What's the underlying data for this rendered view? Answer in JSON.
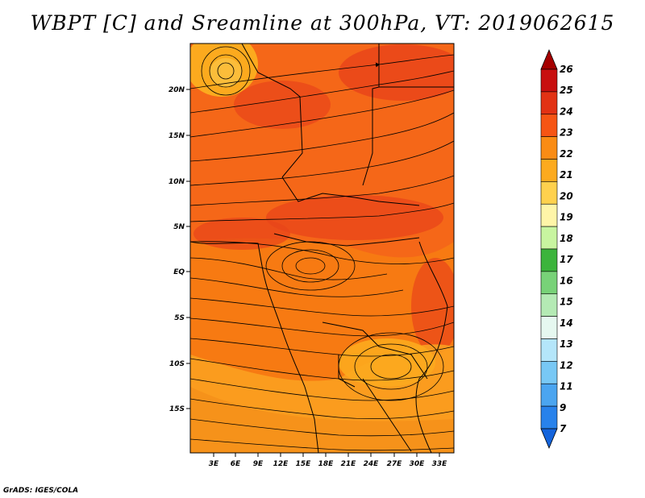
{
  "title": "WBPT [C] and Sreamline at 300hPa, VT: 2019062615",
  "credit": "GrADS: IGES/COLA",
  "map": {
    "lat_labels": [
      "20N",
      "15N",
      "10N",
      "5N",
      "EQ",
      "5S",
      "10S",
      "15S"
    ],
    "lon_labels": [
      "3E",
      "6E",
      "9E",
      "12E",
      "15E",
      "18E",
      "21E",
      "24E",
      "27E",
      "30E",
      "33E"
    ],
    "fill_dominant_color": "#f77a12"
  },
  "colorbar": {
    "labels": [
      "26",
      "25",
      "24",
      "23",
      "22",
      "21",
      "20",
      "19",
      "18",
      "17",
      "16",
      "15",
      "14",
      "13",
      "12",
      "11",
      "9",
      "7"
    ],
    "colors": [
      "#a50000",
      "#c80f0f",
      "#e23214",
      "#f65514",
      "#fa8c14",
      "#fcaa1e",
      "#ffd14e",
      "#fff5a8",
      "#c8f5a0",
      "#3cb43c",
      "#78d278",
      "#b4eab4",
      "#e6f8f0",
      "#b4e6fa",
      "#78c8f5",
      "#4ba5f0",
      "#2882eb",
      "#1464dc"
    ]
  }
}
